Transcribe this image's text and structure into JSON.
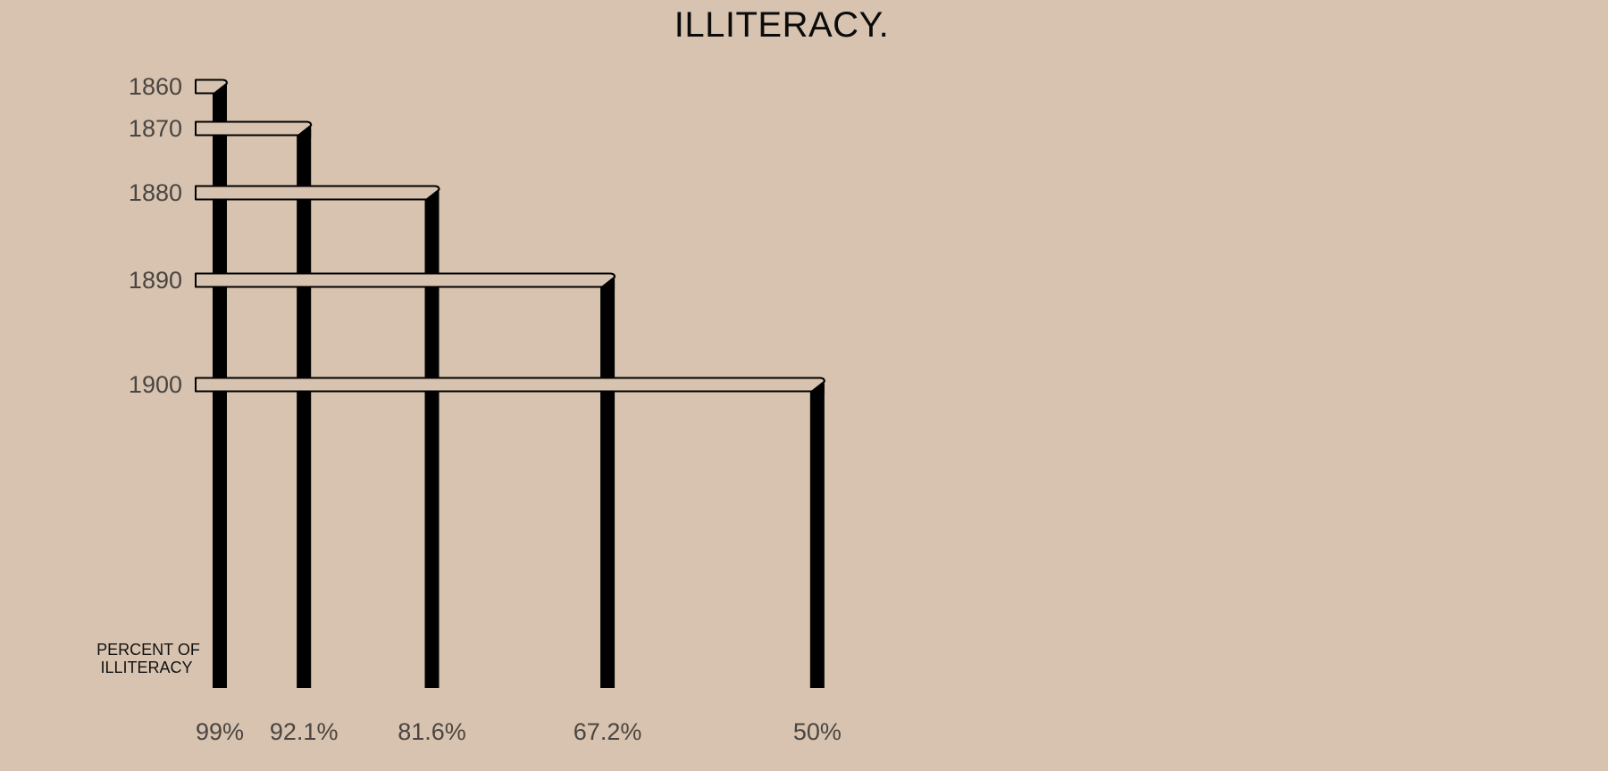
{
  "chart_data": {
    "type": "bar",
    "title": "ILLITERACY.",
    "axis_note_lines": [
      "PERCENT OF",
      "ILLITERACY"
    ],
    "categories": [
      "1860",
      "1870",
      "1880",
      "1890",
      "1900"
    ],
    "values": [
      99,
      92.1,
      81.6,
      67.2,
      50
    ],
    "value_labels": [
      "99%",
      "92.1%",
      "81.6%",
      "67.2%",
      "50%"
    ],
    "unit": "%",
    "grid": false,
    "legend": "none"
  },
  "colors": {
    "background": "#d7c3af",
    "bar_fill": "#d7c3af",
    "bar_outline": "#000000",
    "column_fill": "#000000",
    "label_text": "#4a4542",
    "title_text": "#0b0b0b"
  }
}
